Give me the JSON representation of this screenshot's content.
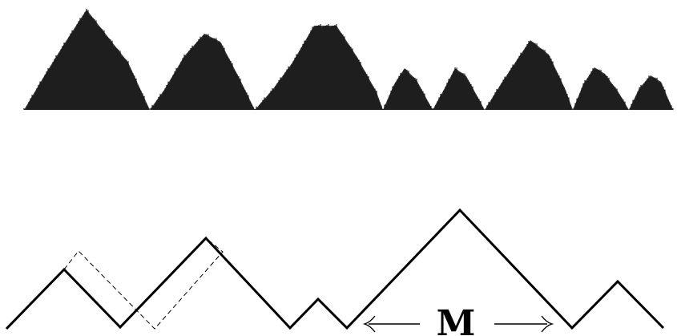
{
  "figure": {
    "label_text": "M",
    "colors": {
      "ink": "#000000",
      "shade": "#3c3c3c",
      "background": "#ffffff"
    }
  }
}
